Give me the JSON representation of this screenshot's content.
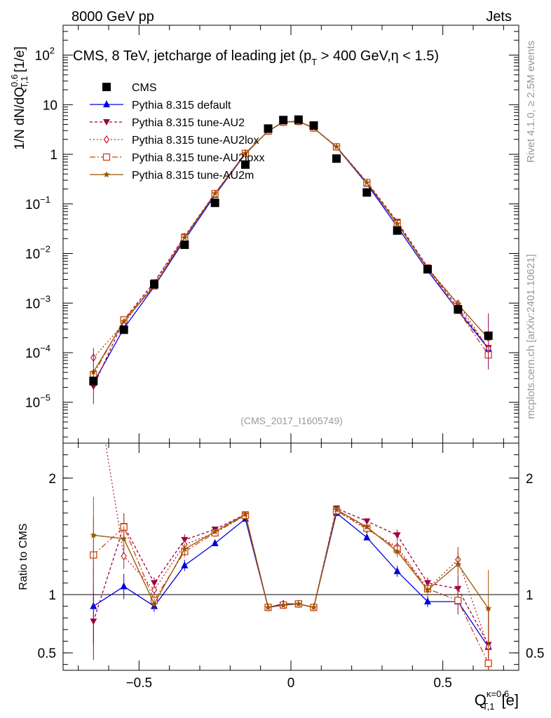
{
  "header": {
    "left": "8000 GeV pp",
    "right": "Jets",
    "side_rivet": "Rivet 4.1.0, ≥ 2.5M events",
    "side_mcplots": "mcplots.cern.ch [arXiv:2401.10621]",
    "analysis_id": "(CMS_2017_I1605749)"
  },
  "colors": {
    "cms": "#000000",
    "default": "#0000dd",
    "au2": "#990044",
    "au2lox": "#bb2233",
    "au2loxx": "#cc4411",
    "au2m": "#995500"
  },
  "chart_data": [
    {
      "id": "main",
      "type": "line",
      "title": "CMS, 8 TeV, jetcharge of leading jet (p_T > 400 GeV, η < 1.5)",
      "title_parts": {
        "a": "CMS, 8 TeV, jetcharge of leading jet (p",
        "sub": "T",
        "b": " > 400 GeV,η < 1.5)"
      },
      "ylabel": "1/N dN/dQ_{T,1}^{0.6} [1/e]",
      "ylabel_parts": {
        "a": "1/N dN/dQ",
        "sup": "0.6",
        "sub": "T,1",
        "b": " [1/e]"
      },
      "yscale": "log",
      "ylim": [
        1.5e-06,
        400
      ],
      "xlim": [
        -0.75,
        0.75
      ],
      "yticks": [
        {
          "v": 1e-05,
          "base": "10",
          "exp": "−5"
        },
        {
          "v": 0.0001,
          "base": "10",
          "exp": "−4"
        },
        {
          "v": 0.001,
          "base": "10",
          "exp": "−3"
        },
        {
          "v": 0.01,
          "base": "10",
          "exp": "−2"
        },
        {
          "v": 0.1,
          "base": "10",
          "exp": "−1"
        },
        {
          "v": 1,
          "base": "1",
          "exp": ""
        },
        {
          "v": 10,
          "base": "10",
          "exp": ""
        },
        {
          "v": 100,
          "base": "10",
          "exp": "2"
        }
      ],
      "x": [
        -0.65,
        -0.55,
        -0.45,
        -0.35,
        -0.25,
        -0.15,
        -0.075,
        -0.025,
        0.025,
        0.075,
        0.15,
        0.25,
        0.35,
        0.45,
        0.55,
        0.65
      ],
      "cms_values": [
        2.7e-05,
        0.00029,
        0.0024,
        0.015,
        0.105,
        0.62,
        3.3,
        4.9,
        5.0,
        3.8,
        0.82,
        0.17,
        0.029,
        0.0048,
        0.00075,
        0.00022
      ],
      "series": [
        {
          "key": "cms",
          "name": "CMS",
          "marker": "square-filled",
          "dash": "none",
          "values": [
            2.7e-05,
            0.00029,
            0.0024,
            0.015,
            0.105,
            0.62,
            3.3,
            4.9,
            5.0,
            3.8,
            0.82,
            0.17,
            0.029,
            0.0048,
            0.00075,
            0.00022
          ]
        },
        {
          "key": "default",
          "name": "Pythia 8.315 default",
          "marker": "triangle-up-filled",
          "dash": "none",
          "values": [
            2.43e-05,
            0.00031,
            0.00216,
            0.0188,
            0.1512,
            1.023,
            2.937,
            4.508,
            4.6,
            3.382,
            1.394,
            0.2533,
            0.0348,
            0.00451,
            0.000705,
            0.000121
          ]
        },
        {
          "key": "au2",
          "name": "Pythia 8.315 tune-AU2",
          "marker": "triangle-down-filled",
          "dash": "4,3",
          "values": [
            2.08e-05,
            0.000461,
            0.00264,
            0.0221,
            0.1638,
            1.048,
            2.937,
            4.459,
            4.6,
            3.382,
            1.427,
            0.2771,
            0.0438,
            0.00528,
            0.000788,
            0.000125
          ]
        },
        {
          "key": "au2lox",
          "name": "Pythia 8.315 tune-AU2lox",
          "marker": "diamond-open",
          "dash": "2,3",
          "values": [
            7.94e-05,
            0.000386,
            0.0025,
            0.0215,
            0.1607,
            1.041,
            2.937,
            4.459,
            4.6,
            3.382,
            1.41,
            0.266,
            0.0409,
            0.00504,
            0.000975,
            0.000121
          ]
        },
        {
          "key": "au2loxx",
          "name": "Pythia 8.315 tune-AU2loxx",
          "marker": "square-open",
          "dash": "8,3,2,3",
          "values": [
            3.62e-05,
            0.000458,
            0.00228,
            0.0206,
            0.1607,
            1.041,
            2.937,
            4.459,
            4.6,
            3.382,
            1.41,
            0.2669,
            0.0403,
            0.00504,
            0.000713,
            9.02e-05
          ]
        },
        {
          "key": "au2m",
          "name": "Pythia 8.315 tune-AU2m",
          "marker": "star-filled",
          "dash": "none",
          "values": [
            4.08e-05,
            0.000429,
            0.00221,
            0.0209,
            0.1617,
            1.048,
            2.937,
            4.459,
            4.6,
            3.382,
            1.419,
            0.2686,
            0.0397,
            0.00499,
            0.000945,
            0.000193
          ]
        }
      ]
    },
    {
      "id": "ratio",
      "type": "line",
      "ylabel": "Ratio to CMS",
      "ylim": [
        0.35,
        2.3
      ],
      "yticks": [
        {
          "v": 0.5,
          "label": "0.5"
        },
        {
          "v": 1,
          "label": "1"
        },
        {
          "v": 2,
          "label": "2"
        }
      ],
      "xlabel": "Q_{T,1}^{κ=0.6} [e]",
      "xlabel_parts": {
        "a": "Q",
        "sup": "κ=0.6",
        "sub": "T,1",
        "b": " [e]"
      },
      "xticks": [
        {
          "v": -0.5,
          "label": "−0.5"
        },
        {
          "v": 0,
          "label": "0"
        },
        {
          "v": 0.5,
          "label": "0.5"
        }
      ],
      "x": [
        -0.65,
        -0.55,
        -0.45,
        -0.35,
        -0.25,
        -0.15,
        -0.075,
        -0.025,
        0.025,
        0.075,
        0.15,
        0.25,
        0.35,
        0.45,
        0.55,
        0.65
      ],
      "series": [
        {
          "key": "default",
          "name": "Pythia 8.315 default",
          "marker": "triangle-up-filled",
          "dash": "none",
          "values": [
            0.9,
            1.07,
            0.9,
            1.25,
            1.44,
            1.65,
            0.89,
            0.92,
            0.92,
            0.89,
            1.7,
            1.49,
            1.2,
            0.94,
            0.94,
            0.55
          ]
        },
        {
          "key": "au2",
          "name": "Pythia 8.315 tune-AU2",
          "marker": "triangle-down-filled",
          "dash": "4,3",
          "values": [
            0.77,
            1.59,
            1.1,
            1.47,
            1.56,
            1.69,
            0.89,
            0.91,
            0.92,
            0.89,
            1.74,
            1.63,
            1.51,
            1.1,
            1.05,
            0.57
          ]
        },
        {
          "key": "au2lox",
          "name": "Pythia 8.315 tune-AU2lox",
          "marker": "diamond-open",
          "dash": "2,3",
          "values": [
            2.94,
            1.33,
            1.04,
            1.43,
            1.53,
            1.68,
            0.89,
            0.91,
            0.92,
            0.89,
            1.72,
            1.56,
            1.41,
            1.05,
            1.3,
            0.55
          ]
        },
        {
          "key": "au2loxx",
          "name": "Pythia 8.315 tune-AU2loxx",
          "marker": "square-open",
          "dash": "8,3,2,3",
          "values": [
            1.34,
            1.58,
            0.95,
            1.37,
            1.53,
            1.68,
            0.89,
            0.91,
            0.92,
            0.89,
            1.72,
            1.57,
            1.39,
            1.05,
            0.95,
            0.41
          ]
        },
        {
          "key": "au2m",
          "name": "Pythia 8.315 tune-AU2m",
          "marker": "star-filled",
          "dash": "none",
          "values": [
            1.51,
            1.48,
            0.92,
            1.39,
            1.54,
            1.69,
            0.89,
            0.91,
            0.92,
            0.89,
            1.73,
            1.58,
            1.37,
            1.04,
            1.26,
            0.88
          ]
        }
      ]
    }
  ]
}
